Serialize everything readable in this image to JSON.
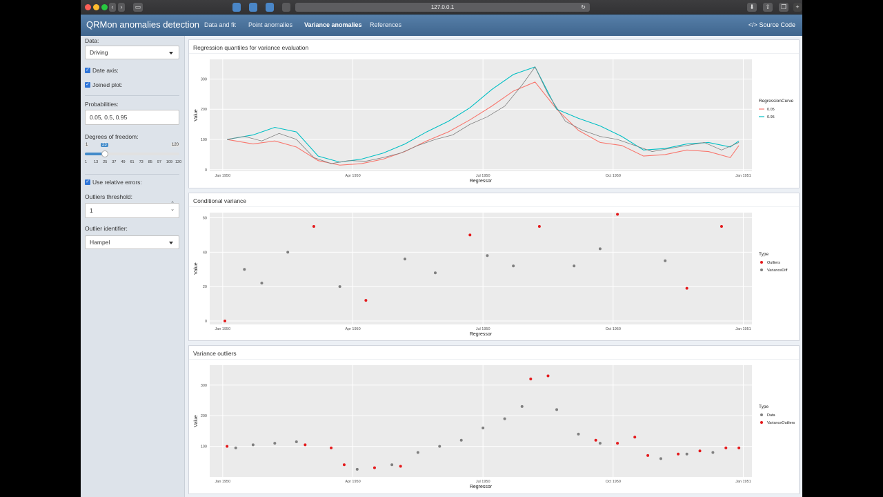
{
  "browser": {
    "url": "127.0.0.1"
  },
  "navbar": {
    "brand": "QRMon anomalies detection",
    "tabs": [
      "Data and fit",
      "Point anomalies",
      "Variance anomalies",
      "References"
    ],
    "active_tab": "Variance anomalies",
    "source_code": "Source Code"
  },
  "sidebar": {
    "data_label": "Data:",
    "data_value": "Driving",
    "date_axis_label": "Date axis:",
    "date_axis_checked": true,
    "joined_plot_label": "Joined plot:",
    "joined_plot_checked": true,
    "probabilities_label": "Probabilities:",
    "probabilities_value": "0.05, 0.5, 0.95",
    "dof_label": "Degrees of freedom:",
    "dof_min": "1",
    "dof_max": "120",
    "dof_value": "23",
    "dof_ticks": [
      "1",
      "13",
      "25",
      "37",
      "49",
      "61",
      "73",
      "85",
      "97",
      "109",
      "120"
    ],
    "rel_errors_label": "Use relative errors:",
    "rel_errors_checked": true,
    "outliers_threshold_label": "Outliers threshold:",
    "outliers_threshold_value": "1",
    "outlier_identifier_label": "Outlier identifier:",
    "outlier_identifier_value": "Hampel"
  },
  "panels": {
    "p1_title": "Regression quantiles for variance evaluation",
    "p2_title": "Conditional variance",
    "p3_title": "Variance outliers"
  },
  "colors": {
    "q05": "#f8766d",
    "q95": "#00bfc4",
    "outliers": "#e41a1c",
    "gray": "#7f7f7f",
    "navbar": "#4a6e96"
  },
  "chart_data": [
    {
      "type": "line",
      "title": "Regression quantiles for variance evaluation",
      "xlabel": "Regressor",
      "ylabel": "Value",
      "x_ticks": [
        "Jan 1950",
        "Apr 1950",
        "Jul 1950",
        "Oct 1950",
        "Jan 1951"
      ],
      "y_ticks": [
        0,
        100,
        200,
        300
      ],
      "xlim": [
        0,
        12.5
      ],
      "ylim": [
        -5,
        365
      ],
      "legend_title": "RegressionCurve",
      "legend_position": "right",
      "grid": true,
      "series": [
        {
          "name": "0.05",
          "x": [
            0.4,
            1,
            1.5,
            2,
            2.5,
            3,
            3.5,
            4,
            4.5,
            5,
            5.5,
            6,
            6.5,
            7,
            7.5,
            8,
            8.5,
            9,
            9.5,
            10,
            10.5,
            11,
            11.5,
            12,
            12.2
          ],
          "y": [
            100,
            85,
            95,
            75,
            30,
            15,
            20,
            35,
            60,
            95,
            125,
            165,
            210,
            260,
            290,
            200,
            130,
            90,
            80,
            45,
            50,
            65,
            60,
            40,
            80
          ]
        },
        {
          "name": "0.95",
          "x": [
            0.4,
            1,
            1.5,
            2,
            2.5,
            3,
            3.5,
            4,
            4.5,
            5,
            5.5,
            6,
            6.5,
            7,
            7.5,
            8,
            8.5,
            9,
            9.5,
            10,
            10.5,
            11,
            11.5,
            12,
            12.2
          ],
          "y": [
            100,
            115,
            140,
            125,
            45,
            25,
            35,
            55,
            85,
            125,
            160,
            205,
            265,
            315,
            340,
            200,
            170,
            145,
            110,
            65,
            70,
            85,
            90,
            75,
            95
          ]
        },
        {
          "name": "",
          "x": [
            0.4,
            0.8,
            1.2,
            1.6,
            2,
            2.4,
            2.8,
            3.2,
            3.6,
            4,
            4.4,
            4.8,
            5.2,
            5.6,
            6,
            6.4,
            6.8,
            7.2,
            7.5,
            7.8,
            8.2,
            8.6,
            9,
            9.4,
            9.8,
            10.2,
            10.6,
            11,
            11.4,
            11.8,
            12.2
          ],
          "y": [
            100,
            110,
            95,
            120,
            100,
            40,
            20,
            30,
            28,
            40,
            55,
            80,
            100,
            115,
            150,
            175,
            210,
            280,
            340,
            250,
            160,
            130,
            110,
            100,
            80,
            60,
            70,
            80,
            90,
            65,
            90
          ]
        }
      ]
    },
    {
      "type": "scatter",
      "title": "Conditional variance",
      "xlabel": "Regressor",
      "ylabel": "Value",
      "x_ticks": [
        "Jan 1950",
        "Apr 1950",
        "Jul 1950",
        "Oct 1950",
        "Jan 1951"
      ],
      "y_ticks": [
        0,
        20,
        40,
        60
      ],
      "xlim": [
        0,
        12.5
      ],
      "ylim": [
        -2,
        63
      ],
      "legend_title": "Type",
      "legend_position": "right",
      "grid": true,
      "series": [
        {
          "name": "Outliers",
          "x": [
            0.35,
            2.4,
            3.6,
            6.0,
            7.6,
            9.4,
            11.0,
            11.8
          ],
          "y": [
            0,
            55,
            12,
            50,
            55,
            62,
            19,
            55
          ]
        },
        {
          "name": "VarianceDiff",
          "x": [
            0.8,
            1.2,
            1.8,
            3.0,
            4.5,
            5.2,
            6.4,
            7.0,
            8.4,
            9.0,
            10.5
          ],
          "y": [
            30,
            22,
            40,
            20,
            36,
            28,
            38,
            32,
            32,
            42,
            35
          ]
        }
      ]
    },
    {
      "type": "scatter",
      "title": "Variance outliers",
      "xlabel": "Regressor",
      "ylabel": "Value",
      "x_ticks": [
        "Jan 1950",
        "Apr 1950",
        "Jul 1950",
        "Oct 1950",
        "Jan 1951"
      ],
      "y_ticks": [
        100,
        200,
        300
      ],
      "xlim": [
        0,
        12.5
      ],
      "ylim": [
        0,
        365
      ],
      "legend_title": "Type",
      "legend_position": "right",
      "grid": true,
      "series": [
        {
          "name": "Data",
          "x": [
            0.6,
            1,
            1.5,
            2,
            3.4,
            4.2,
            4.8,
            5.3,
            5.8,
            6.3,
            6.8,
            7.2,
            8,
            8.5,
            9,
            10.4,
            11,
            11.6
          ],
          "y": [
            95,
            105,
            110,
            115,
            25,
            40,
            80,
            100,
            120,
            160,
            190,
            230,
            220,
            140,
            110,
            60,
            75,
            80
          ]
        },
        {
          "name": "VarianceOutliers",
          "x": [
            0.4,
            2.2,
            2.8,
            3.1,
            3.8,
            4.4,
            7.4,
            7.8,
            8.9,
            9.4,
            9.8,
            10.1,
            10.8,
            11.3,
            11.9,
            12.2
          ],
          "y": [
            100,
            105,
            95,
            40,
            30,
            35,
            320,
            330,
            120,
            110,
            130,
            70,
            75,
            85,
            95,
            95
          ]
        }
      ]
    }
  ]
}
